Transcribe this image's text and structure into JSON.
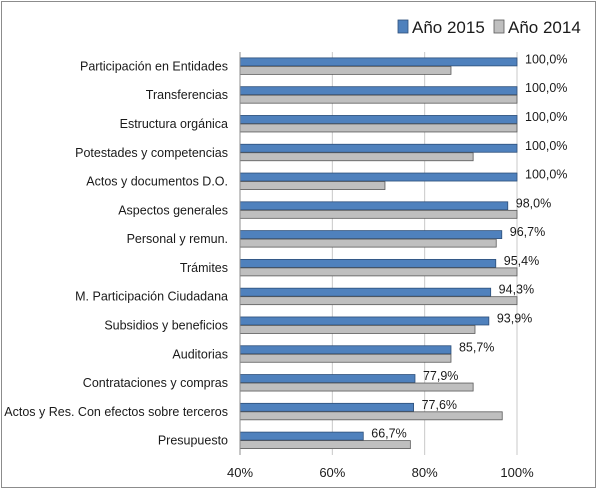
{
  "chart_data": {
    "type": "bar",
    "orientation": "horizontal",
    "categories": [
      "Participación en Entidades",
      "Transferencias",
      "Estructura orgánica",
      "Potestades y competencias",
      "Actos y documentos D.O.",
      "Aspectos generales",
      "Personal y remun.",
      "Trámites",
      "M. Participación Ciudadana",
      "Subsidios y beneficios",
      "Auditorias",
      "Contrataciones y compras",
      "Actos y Res. Con efectos sobre terceros",
      "Presupuesto"
    ],
    "series": [
      {
        "name": "Año 2015",
        "color": "#4f81bd",
        "values": [
          100.0,
          100.0,
          100.0,
          100.0,
          100.0,
          98.0,
          96.7,
          95.4,
          94.3,
          93.9,
          85.7,
          77.9,
          77.6,
          66.7
        ],
        "labels": [
          "100,0%",
          "100,0%",
          "100,0%",
          "100,0%",
          "100,0%",
          "98,0%",
          "96,7%",
          "95,4%",
          "94,3%",
          "93,9%",
          "85,7%",
          "77,9%",
          "77,6%",
          "66,7%"
        ]
      },
      {
        "name": "Año 2014",
        "color": "#bfbfbf",
        "values": [
          85.7,
          100.0,
          100.0,
          90.5,
          71.4,
          100.0,
          95.5,
          100.0,
          100.0,
          90.9,
          85.7,
          90.5,
          96.8,
          76.9
        ]
      }
    ],
    "xlim": [
      40,
      100
    ],
    "xticks": [
      "40%",
      "60%",
      "80%",
      "100%"
    ],
    "xtick_values": [
      40,
      60,
      80,
      100
    ],
    "grid": "vertical",
    "legend_position": "top-right"
  }
}
